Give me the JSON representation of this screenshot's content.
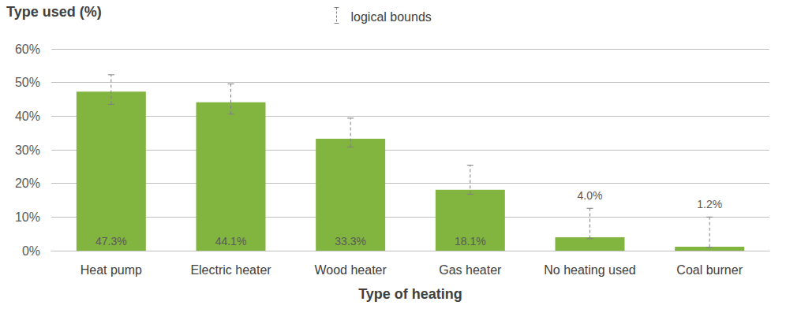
{
  "chart_data": {
    "type": "bar",
    "x_label": "Type of heating",
    "y_label": "Type used (%)",
    "categories": [
      "Heat pump",
      "Electric heater",
      "Wood heater",
      "Gas heater",
      "No heating used",
      "Coal burner"
    ],
    "values": [
      47.3,
      44.1,
      33.3,
      18.1,
      4.0,
      1.2
    ],
    "value_labels": [
      "47.3%",
      "44.1%",
      "33.3%",
      "18.1%",
      "4.0%",
      "1.2%"
    ],
    "color": "#82b440",
    "error_bars": {
      "name": "logical bounds",
      "lower": [
        43.5,
        40.6,
        30.8,
        16.8,
        3.6,
        1.0
      ],
      "upper": [
        52.3,
        49.6,
        39.4,
        25.4,
        12.6,
        10.0
      ]
    },
    "ylim": [
      0,
      60
    ],
    "yticks": [
      {
        "value": 0,
        "label": "0%"
      },
      {
        "value": 10,
        "label": "10%"
      },
      {
        "value": 20,
        "label": "20%"
      },
      {
        "value": 30,
        "label": "30%"
      },
      {
        "value": 40,
        "label": "40%"
      },
      {
        "value": 50,
        "label": "50%"
      },
      {
        "value": 60,
        "label": "60%"
      }
    ],
    "grid": true,
    "data_labels": true,
    "legend": "top"
  }
}
